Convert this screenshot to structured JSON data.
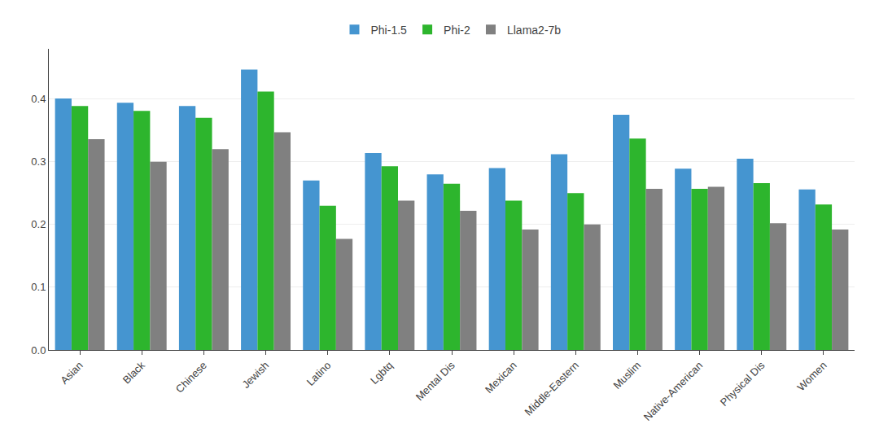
{
  "chart_data": {
    "type": "bar",
    "categories": [
      "Asian",
      "Black",
      "Chinese",
      "Jewish",
      "Latino",
      "Lgbtq",
      "Mental Dis",
      "Mexican",
      "Middle-Eastern",
      "Muslim",
      "Native-American",
      "Physical Dis",
      "Women"
    ],
    "series": [
      {
        "name": "Phi-1.5",
        "color": "#4595d0",
        "values": [
          0.401,
          0.394,
          0.389,
          0.447,
          0.27,
          0.314,
          0.28,
          0.29,
          0.312,
          0.375,
          0.289,
          0.305,
          0.256
        ]
      },
      {
        "name": "Phi-2",
        "color": "#2db52d",
        "values": [
          0.389,
          0.381,
          0.37,
          0.412,
          0.23,
          0.293,
          0.265,
          0.238,
          0.25,
          0.337,
          0.257,
          0.266,
          0.232
        ]
      },
      {
        "name": "Llama2-7b",
        "color": "#808080",
        "values": [
          0.336,
          0.3,
          0.32,
          0.347,
          0.177,
          0.238,
          0.222,
          0.192,
          0.2,
          0.257,
          0.26,
          0.202,
          0.192
        ]
      }
    ],
    "ylim": [
      0.0,
      0.48
    ],
    "yticks": [
      {
        "value": 0.0,
        "label": "0.0"
      },
      0.1,
      0.2,
      0.3,
      0.4
    ],
    "grid": true,
    "legend": "top"
  }
}
